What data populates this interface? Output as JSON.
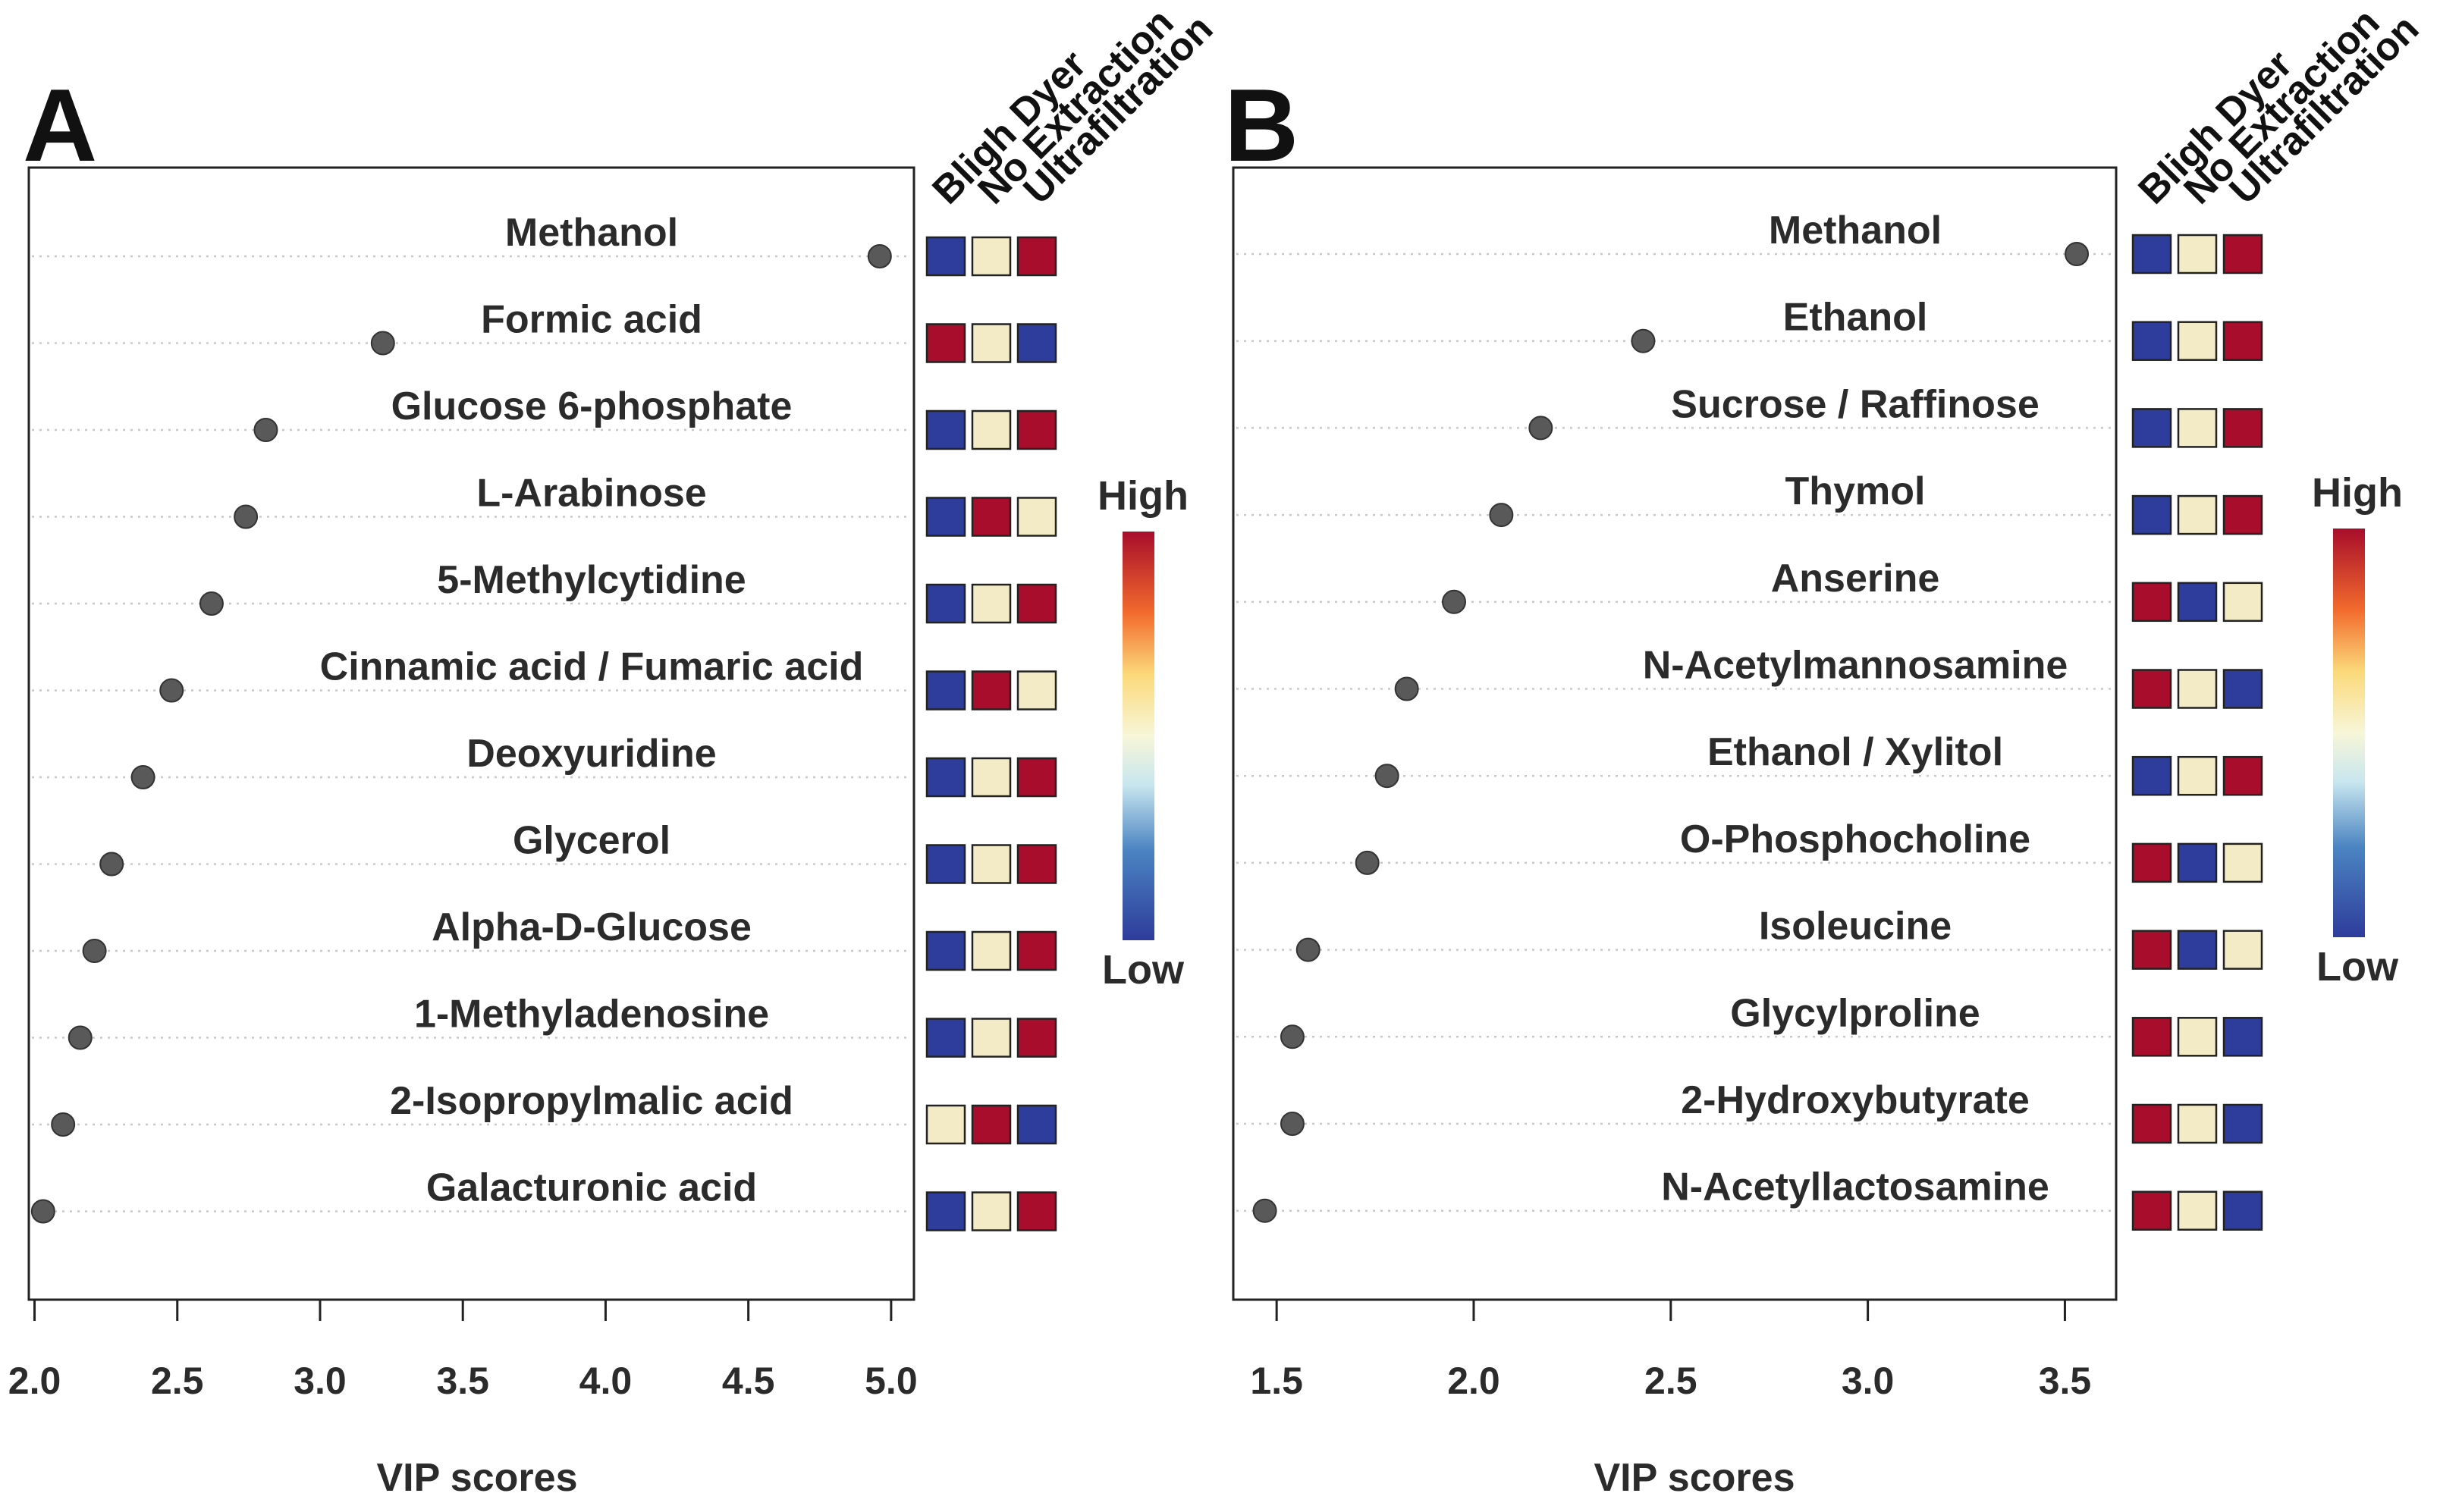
{
  "colors": {
    "low": "#2e3c9b",
    "mid": "#f3ebc5",
    "high": "#a80d2b",
    "dot": "#595959",
    "frame": "#222222",
    "gridline": "#c8c8c8"
  },
  "chart_data": [
    {
      "type": "scatter",
      "panel": "A",
      "xlabel": "VIP scores",
      "xlim": [
        1.98,
        5.08
      ],
      "xticks": [
        "2.0",
        "2.5",
        "3.0",
        "3.5",
        "4.0",
        "4.5",
        "5.0"
      ],
      "xtick_values": [
        2.0,
        2.5,
        3.0,
        3.5,
        4.0,
        4.5,
        5.0
      ],
      "columns": [
        "Bligh Dyer",
        "No Extraction",
        "Ultrafiltration"
      ],
      "legend": {
        "high": "High",
        "low": "Low"
      },
      "items": [
        {
          "name": "Methanol",
          "vip": 4.96,
          "levels": [
            "low",
            "mid",
            "high"
          ]
        },
        {
          "name": "Formic acid",
          "vip": 3.22,
          "levels": [
            "high",
            "mid",
            "low"
          ]
        },
        {
          "name": "Glucose 6-phosphate",
          "vip": 2.81,
          "levels": [
            "low",
            "mid",
            "high"
          ]
        },
        {
          "name": "L-Arabinose",
          "vip": 2.74,
          "levels": [
            "low",
            "high",
            "mid"
          ]
        },
        {
          "name": "5-Methylcytidine",
          "vip": 2.62,
          "levels": [
            "low",
            "mid",
            "high"
          ]
        },
        {
          "name": "Cinnamic acid / Fumaric acid",
          "vip": 2.48,
          "levels": [
            "low",
            "high",
            "mid"
          ]
        },
        {
          "name": "Deoxyuridine",
          "vip": 2.38,
          "levels": [
            "low",
            "mid",
            "high"
          ]
        },
        {
          "name": "Glycerol",
          "vip": 2.27,
          "levels": [
            "low",
            "mid",
            "high"
          ]
        },
        {
          "name": "Alpha-D-Glucose",
          "vip": 2.21,
          "levels": [
            "low",
            "mid",
            "high"
          ]
        },
        {
          "name": "1-Methyladenosine",
          "vip": 2.16,
          "levels": [
            "low",
            "mid",
            "high"
          ]
        },
        {
          "name": "2-Isopropylmalic acid",
          "vip": 2.1,
          "levels": [
            "mid",
            "high",
            "low"
          ]
        },
        {
          "name": "Galacturonic acid",
          "vip": 2.03,
          "levels": [
            "low",
            "mid",
            "high"
          ]
        }
      ]
    },
    {
      "type": "scatter",
      "panel": "B",
      "xlabel": "VIP scores",
      "xlim": [
        1.39,
        3.63
      ],
      "xticks": [
        "1.5",
        "2.0",
        "2.5",
        "3.0",
        "3.5"
      ],
      "xtick_values": [
        1.5,
        2.0,
        2.5,
        3.0,
        3.5
      ],
      "columns": [
        "Bligh Dyer",
        "No Extraction",
        "Ultrafiltration"
      ],
      "legend": {
        "high": "High",
        "low": "Low"
      },
      "items": [
        {
          "name": "Methanol",
          "vip": 3.53,
          "levels": [
            "low",
            "mid",
            "high"
          ]
        },
        {
          "name": "Ethanol",
          "vip": 2.43,
          "levels": [
            "low",
            "mid",
            "high"
          ]
        },
        {
          "name": "Sucrose / Raffinose",
          "vip": 2.17,
          "levels": [
            "low",
            "mid",
            "high"
          ]
        },
        {
          "name": "Thymol",
          "vip": 2.07,
          "levels": [
            "low",
            "mid",
            "high"
          ]
        },
        {
          "name": "Anserine",
          "vip": 1.95,
          "levels": [
            "high",
            "low",
            "mid"
          ]
        },
        {
          "name": "N-Acetylmannosamine",
          "vip": 1.83,
          "levels": [
            "high",
            "mid",
            "low"
          ]
        },
        {
          "name": "Ethanol / Xylitol",
          "vip": 1.78,
          "levels": [
            "low",
            "mid",
            "high"
          ]
        },
        {
          "name": "O-Phosphocholine",
          "vip": 1.73,
          "levels": [
            "high",
            "low",
            "mid"
          ]
        },
        {
          "name": "Isoleucine",
          "vip": 1.58,
          "levels": [
            "high",
            "low",
            "mid"
          ]
        },
        {
          "name": "Glycylproline",
          "vip": 1.54,
          "levels": [
            "high",
            "mid",
            "low"
          ]
        },
        {
          "name": "2-Hydroxybutyrate",
          "vip": 1.54,
          "levels": [
            "high",
            "mid",
            "low"
          ]
        },
        {
          "name": "N-Acetyllactosamine",
          "vip": 1.47,
          "levels": [
            "high",
            "mid",
            "low"
          ]
        }
      ]
    }
  ]
}
